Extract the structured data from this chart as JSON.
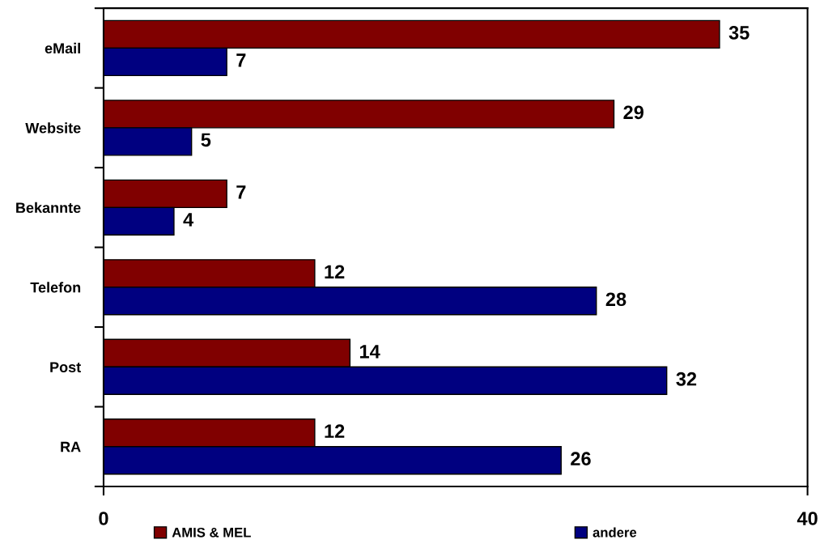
{
  "chart_data": {
    "type": "bar",
    "orientation": "horizontal",
    "categories": [
      "eMail",
      "Website",
      "Bekannte",
      "Telefon",
      "Post",
      "RA"
    ],
    "series": [
      {
        "name": "AMIS & MEL",
        "color": "#800000",
        "values": [
          35,
          29,
          7,
          12,
          14,
          12
        ]
      },
      {
        "name": "andere",
        "color": "#000080",
        "values": [
          7,
          5,
          4,
          28,
          32,
          26
        ]
      }
    ],
    "xlim": [
      0,
      40
    ],
    "xticks": [
      0,
      40
    ],
    "data_labels": true,
    "legend": "bottom"
  }
}
